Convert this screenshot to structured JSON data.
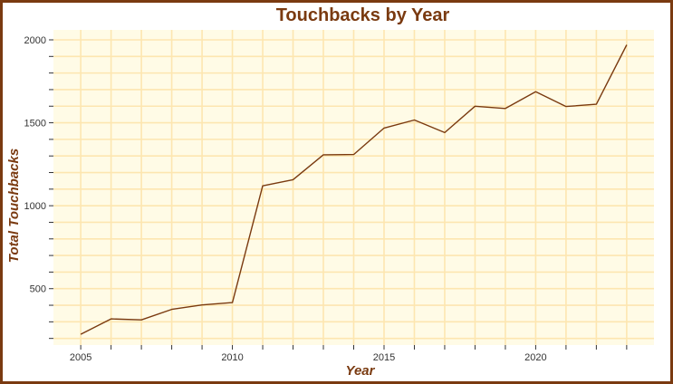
{
  "chart_data": {
    "type": "line",
    "title": "Touchbacks by Year",
    "xlabel": "Year",
    "ylabel": "Total Touchbacks",
    "x": [
      2005,
      2006,
      2007,
      2008,
      2009,
      2010,
      2011,
      2012,
      2013,
      2014,
      2015,
      2016,
      2017,
      2018,
      2019,
      2020,
      2021,
      2022,
      2023
    ],
    "series": [
      {
        "values": [
          225,
          318,
          312,
          375,
          402,
          416,
          1120,
          1157,
          1307,
          1309,
          1468,
          1517,
          1441,
          1600,
          1586,
          1687,
          1598,
          1612,
          1970
        ]
      }
    ],
    "xlim": [
      2004.1,
      2023.9
    ],
    "ylim": [
      160,
      2060
    ],
    "x_ticks": [
      2005,
      2010,
      2015,
      2020
    ],
    "x_tick_labels": [
      "2005",
      "2010",
      "2015",
      "2020"
    ],
    "y_ticks": [
      500,
      1000,
      1500,
      2000
    ],
    "y_tick_labels": [
      "500",
      "1000",
      "1500",
      "2000"
    ],
    "grid": true,
    "colors": {
      "line": "#7a3a10",
      "text": "#7a3a10",
      "panel": "#fffbe6",
      "grid": "#fde6b0",
      "frame": "#7a3a10",
      "tick": "#333333"
    }
  }
}
